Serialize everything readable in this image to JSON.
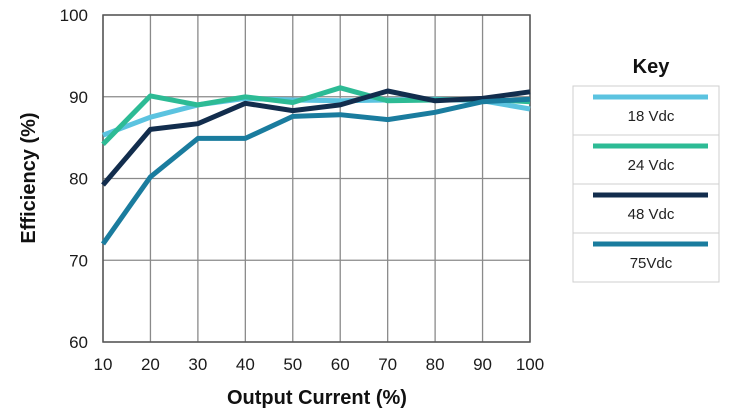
{
  "chart_data": {
    "type": "line",
    "title": "",
    "xlabel": "Output Current (%)",
    "ylabel": "Efficiency (%)",
    "x": [
      10,
      20,
      30,
      40,
      50,
      60,
      70,
      80,
      90,
      100
    ],
    "xlim": [
      10,
      100
    ],
    "ylim": [
      60,
      100
    ],
    "xticks": [
      "10",
      "20",
      "30",
      "40",
      "50",
      "60",
      "70",
      "80",
      "90",
      "100"
    ],
    "yticks": [
      "60",
      "70",
      "80",
      "90",
      "100"
    ],
    "grid": true,
    "legend_title": "Key",
    "legend_position": "right",
    "series": [
      {
        "name": "18 Vdc",
        "color": "#5bc3e0",
        "values": [
          85.3,
          87.5,
          89.0,
          89.8,
          89.6,
          89.5,
          89.6,
          89.7,
          89.5,
          88.5
        ]
      },
      {
        "name": "24 Vdc",
        "color": "#2dbb95",
        "values": [
          84.2,
          90.1,
          89.0,
          90.0,
          89.3,
          91.1,
          89.5,
          89.6,
          89.7,
          89.4
        ]
      },
      {
        "name": "48 Vdc",
        "color": "#122d4d",
        "values": [
          79.2,
          86.0,
          86.7,
          89.2,
          88.3,
          89.0,
          90.7,
          89.5,
          89.8,
          90.6
        ]
      },
      {
        "name": "75Vdc",
        "color": "#1a7c9e",
        "values": [
          72.0,
          80.2,
          84.9,
          84.9,
          87.6,
          87.8,
          87.2,
          88.1,
          89.4,
          89.7
        ]
      }
    ]
  }
}
